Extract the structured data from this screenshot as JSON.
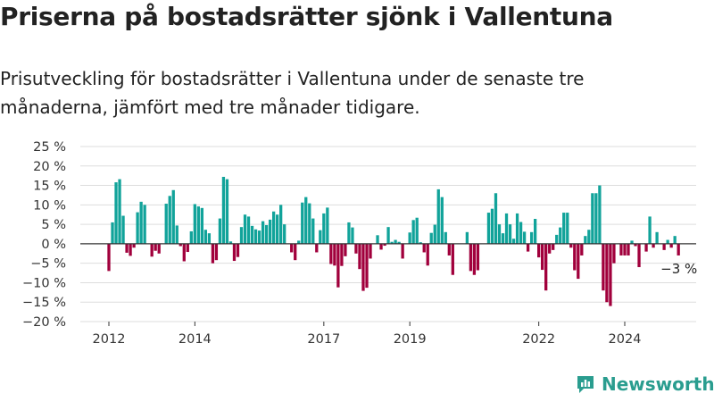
{
  "header": {
    "title": "Priserna på bostadsrätter sjönk i Vallentuna",
    "subtitle": "Prisutveckling för bostadsrätter i Vallentuna under de senaste tre månaderna, jämfört med tre månader tidigare."
  },
  "brand": {
    "name": "Newsworthy",
    "icon": "newsworthy-logo-icon"
  },
  "colors": {
    "positive": "#11a39a",
    "negative": "#a1003c",
    "grid": "#dddddd",
    "zero": "#333333"
  },
  "chart_data": {
    "type": "bar",
    "ylim": [
      -20,
      25
    ],
    "yticks": [
      25,
      20,
      15,
      10,
      5,
      0,
      -5,
      -10,
      -15,
      -20
    ],
    "ytick_labels": [
      "25 %",
      "20 %",
      "15 %",
      "10 %",
      "5 %",
      "0 %",
      "−5 %",
      "−10 %",
      "−15 %",
      "−20 %"
    ],
    "xticks": [
      {
        "label": "2012",
        "at": 2012.0
      },
      {
        "label": "2014",
        "at": 2014.0
      },
      {
        "label": "2017",
        "at": 2017.0
      },
      {
        "label": "2019",
        "at": 2019.0
      },
      {
        "label": "2022",
        "at": 2022.0
      },
      {
        "label": "2024",
        "at": 2024.0
      }
    ],
    "x_start": 2012.0,
    "x_step": 0.08333,
    "values": [
      -7,
      5.5,
      15.8,
      16.6,
      7.2,
      -2.3,
      -3.1,
      -1,
      8.1,
      10.8,
      10,
      0,
      -3.3,
      -1.8,
      -2.5,
      0,
      10.3,
      12.3,
      13.8,
      4.7,
      -0.6,
      -4.5,
      -2.1,
      3.2,
      10.2,
      9.6,
      9.2,
      3.6,
      2.7,
      -5,
      -4.2,
      6.5,
      17.2,
      16.6,
      0.6,
      -4.4,
      -3.4,
      4.3,
      7.5,
      7,
      4.6,
      3.7,
      3.4,
      5.8,
      4.8,
      6.2,
      8.3,
      7.5,
      10,
      5,
      0,
      -2.2,
      -4.2,
      0.8,
      10.6,
      12,
      10.4,
      6.5,
      -2.2,
      3.5,
      7.8,
      9.3,
      -5.2,
      -5.6,
      -11.2,
      -5.7,
      -3.2,
      5.5,
      4.2,
      -2.5,
      -6.5,
      -12.1,
      -11.3,
      -3.8,
      0,
      2.2,
      -1.5,
      -0.5,
      4.3,
      0.5,
      1,
      0.5,
      -3.8,
      0,
      2.9,
      6.1,
      6.7,
      0.4,
      -2.2,
      -5.6,
      2.8,
      4.9,
      14,
      12,
      3,
      -3,
      -8,
      0,
      0,
      0,
      3,
      -7,
      -8,
      -6.8,
      0,
      0,
      8,
      9,
      13,
      5,
      2.7,
      7.8,
      5,
      1.3,
      7.8,
      5.6,
      3.1,
      -2,
      3,
      6.4,
      -3.5,
      -6.7,
      -12,
      -2.5,
      -1.6,
      2.3,
      4.2,
      8,
      8,
      -1,
      -6.8,
      -9,
      -3,
      2,
      3.6,
      13,
      13,
      15,
      -12,
      -15,
      -16,
      -5,
      0,
      -3,
      -3,
      -3,
      0.8,
      -0.6,
      -6,
      0,
      -2,
      7,
      -1,
      3,
      0,
      -1.6,
      1,
      -1,
      2,
      -3
    ],
    "annotations": [
      {
        "text": "−3 %",
        "value": -3
      }
    ]
  }
}
